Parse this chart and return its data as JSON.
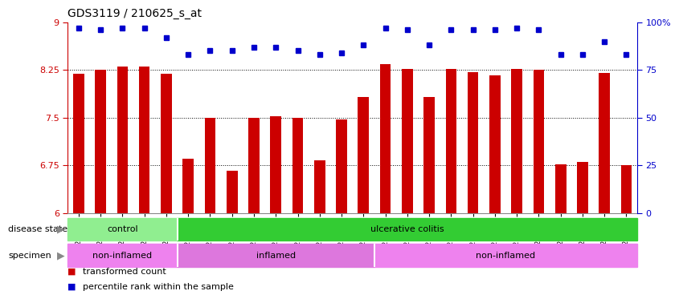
{
  "title": "GDS3119 / 210625_s_at",
  "samples": [
    "GSM240023",
    "GSM240024",
    "GSM240025",
    "GSM240026",
    "GSM240027",
    "GSM239617",
    "GSM239618",
    "GSM239714",
    "GSM239716",
    "GSM239717",
    "GSM239718",
    "GSM239719",
    "GSM239720",
    "GSM239723",
    "GSM239725",
    "GSM239726",
    "GSM239727",
    "GSM239729",
    "GSM239730",
    "GSM239731",
    "GSM239732",
    "GSM240022",
    "GSM240028",
    "GSM240029",
    "GSM240030",
    "GSM240031"
  ],
  "bar_values": [
    8.19,
    8.25,
    8.3,
    8.3,
    8.19,
    6.85,
    7.5,
    6.67,
    7.5,
    7.52,
    7.5,
    6.83,
    7.47,
    7.82,
    8.34,
    8.27,
    7.82,
    8.27,
    8.22,
    8.17,
    8.27,
    8.25,
    6.77,
    6.8,
    8.2,
    6.75
  ],
  "percentile_values": [
    97,
    96,
    97,
    97,
    92,
    83,
    85,
    85,
    87,
    87,
    85,
    83,
    84,
    88,
    97,
    96,
    88,
    96,
    96,
    96,
    97,
    96,
    83,
    83,
    90,
    83
  ],
  "ylim_left": [
    6,
    9
  ],
  "ylim_right": [
    0,
    100
  ],
  "yticks_left": [
    6,
    6.75,
    7.5,
    8.25,
    9
  ],
  "yticks_right": [
    0,
    25,
    50,
    75,
    100
  ],
  "bar_color": "#cc0000",
  "dot_color": "#0000cc",
  "disease_state_groups": [
    {
      "label": "control",
      "start": 0,
      "end": 5,
      "color": "#90ee90"
    },
    {
      "label": "ulcerative colitis",
      "start": 5,
      "end": 26,
      "color": "#33cc33"
    }
  ],
  "specimen_groups": [
    {
      "label": "non-inflamed",
      "start": 0,
      "end": 5,
      "color": "#ee82ee"
    },
    {
      "label": "inflamed",
      "start": 5,
      "end": 14,
      "color": "#dd77dd"
    },
    {
      "label": "non-inflamed",
      "start": 14,
      "end": 26,
      "color": "#ee82ee"
    }
  ],
  "legend_items": [
    {
      "label": "transformed count",
      "color": "#cc0000"
    },
    {
      "label": "percentile rank within the sample",
      "color": "#0000cc"
    }
  ],
  "label_disease_state": "disease state",
  "label_specimen": "specimen"
}
